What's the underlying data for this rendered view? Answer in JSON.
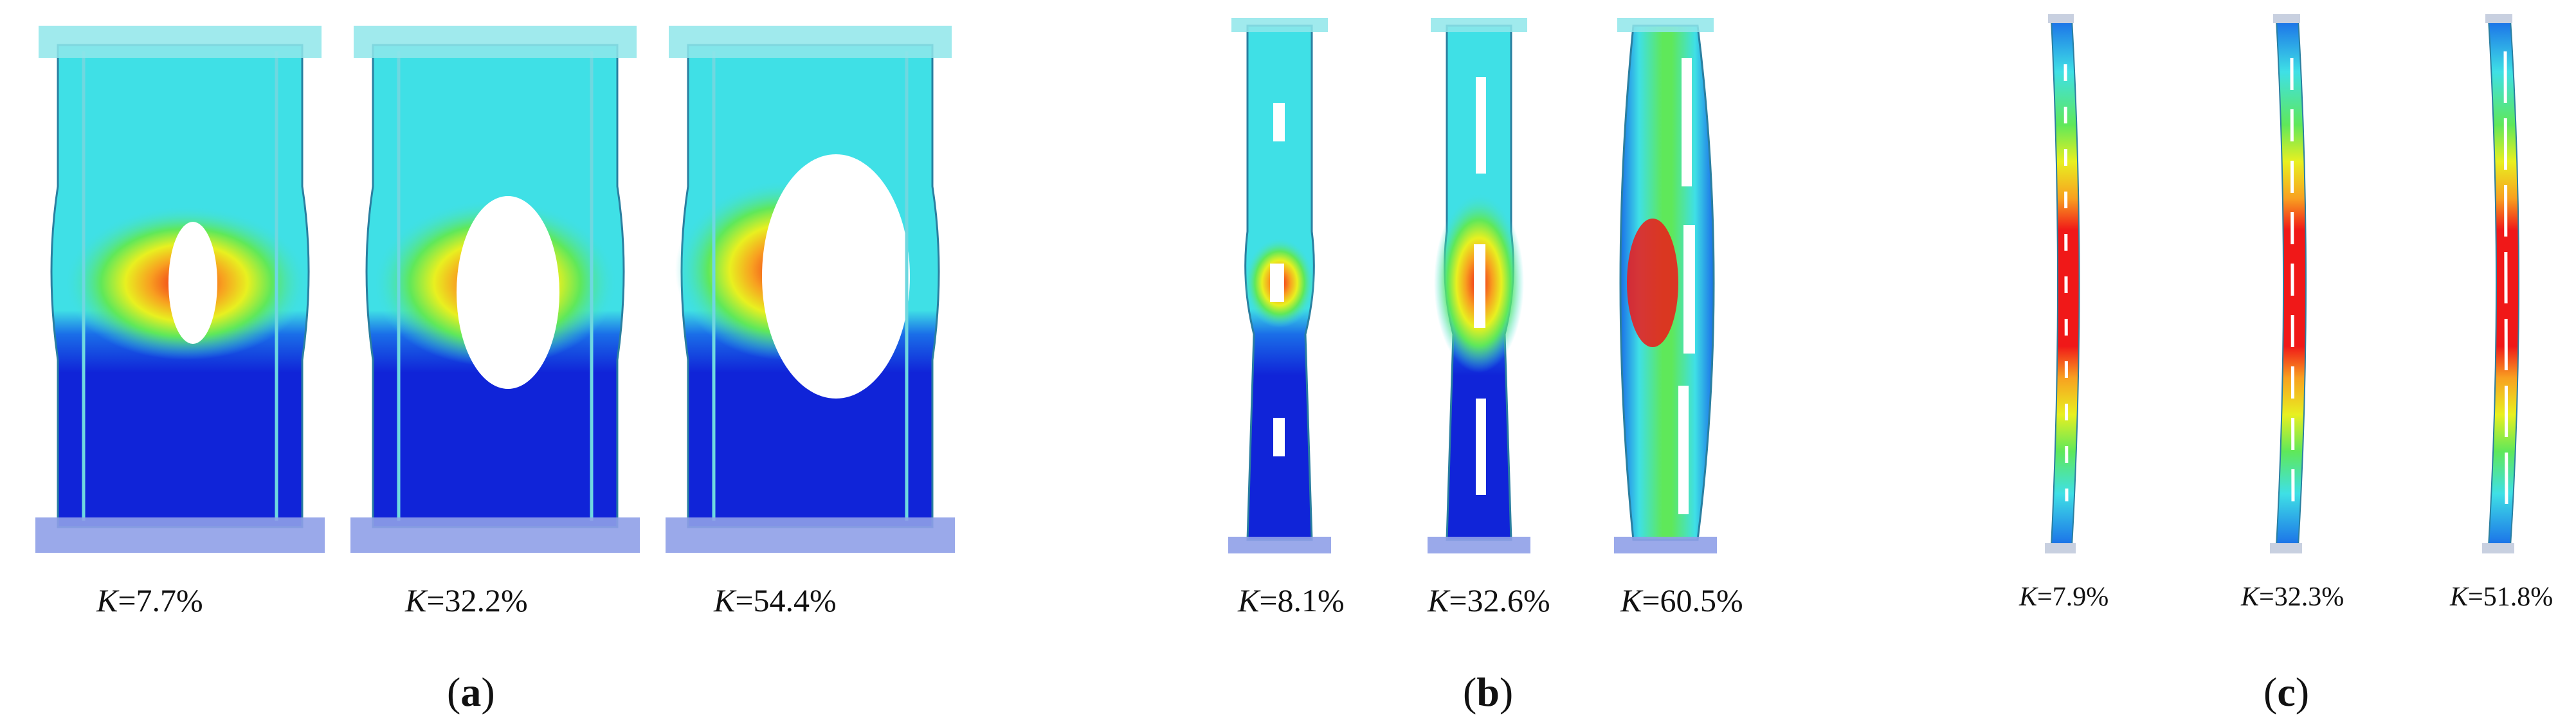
{
  "panels": [
    {
      "id": "a",
      "label_open": "(",
      "label_letter": "a",
      "label_close": ")",
      "items": [
        {
          "k_prefix": "K",
          "k_value": "=7.7%"
        },
        {
          "k_prefix": "K",
          "k_value": "=32.2%"
        },
        {
          "k_prefix": "K",
          "k_value": "=54.4%"
        }
      ]
    },
    {
      "id": "b",
      "label_open": "(",
      "label_letter": "b",
      "label_close": ")",
      "items": [
        {
          "k_prefix": "K",
          "k_value": "=8.1%"
        },
        {
          "k_prefix": "K",
          "k_value": "=32.6%"
        },
        {
          "k_prefix": "K",
          "k_value": "=60.5%"
        }
      ]
    },
    {
      "id": "c",
      "label_open": "(",
      "label_letter": "c",
      "label_close": ")",
      "items": [
        {
          "k_prefix": "K",
          "k_value": "=7.9%"
        },
        {
          "k_prefix": "K",
          "k_value": "=32.3%"
        },
        {
          "k_prefix": "K",
          "k_value": "=51.8%"
        }
      ]
    }
  ],
  "colors": {
    "cyan": "#3fe0e6",
    "blue": "#1024d8",
    "midblue": "#1a6ee8",
    "green": "#5fe85a",
    "yellow": "#e8f020",
    "orange": "#f8a020",
    "red": "#f01818",
    "plate": "#8fa0e8"
  }
}
